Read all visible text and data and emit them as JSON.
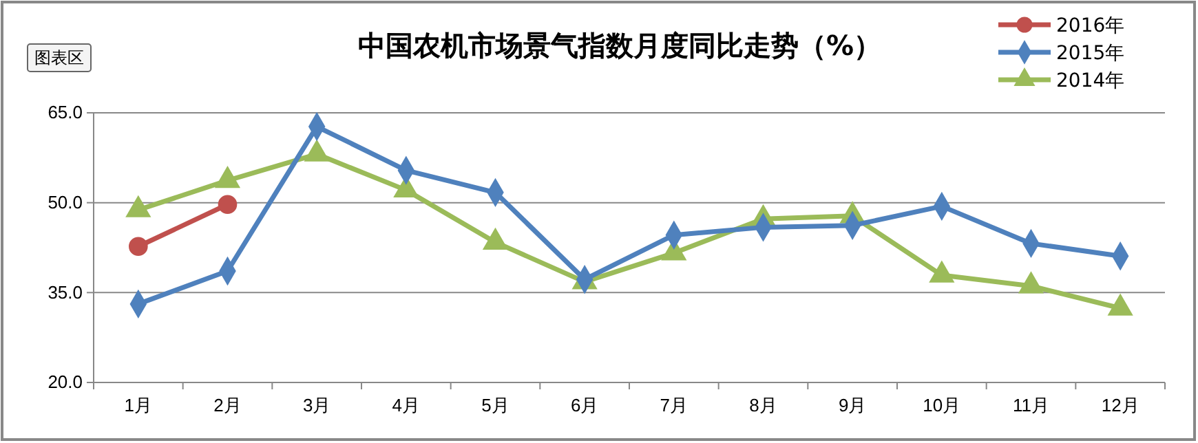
{
  "chart_data": {
    "type": "line",
    "title": "中国农机市场景气指数月度同比走势（%）",
    "categories": [
      "1月",
      "2月",
      "3月",
      "4月",
      "5月",
      "6月",
      "7月",
      "8月",
      "9月",
      "10月",
      "11月",
      "12月"
    ],
    "series": [
      {
        "name": "2016年",
        "color": "#c0504d",
        "marker": "circle",
        "values": [
          42.7,
          49.7,
          null,
          null,
          null,
          null,
          null,
          null,
          null,
          null,
          null,
          null
        ]
      },
      {
        "name": "2015年",
        "color": "#4f81bd",
        "marker": "diamond",
        "values": [
          33.1,
          38.6,
          62.7,
          55.4,
          51.7,
          37.2,
          44.6,
          45.9,
          46.2,
          49.4,
          43.2,
          41.1
        ]
      },
      {
        "name": "2014年",
        "color": "#9bbb59",
        "marker": "triangle",
        "values": [
          48.8,
          53.7,
          58.1,
          52.1,
          43.4,
          36.8,
          41.6,
          47.3,
          47.8,
          37.9,
          36.1,
          32.4
        ]
      }
    ],
    "ylim": [
      20,
      65
    ],
    "yticks": [
      {
        "value": 20,
        "label": "20.0"
      },
      {
        "value": 35,
        "label": "35.0"
      },
      {
        "value": 50,
        "label": "50.0"
      },
      {
        "value": 65,
        "label": "65.0"
      }
    ],
    "grid": "y",
    "legend": "top right",
    "annotations": [
      "图表区"
    ]
  }
}
